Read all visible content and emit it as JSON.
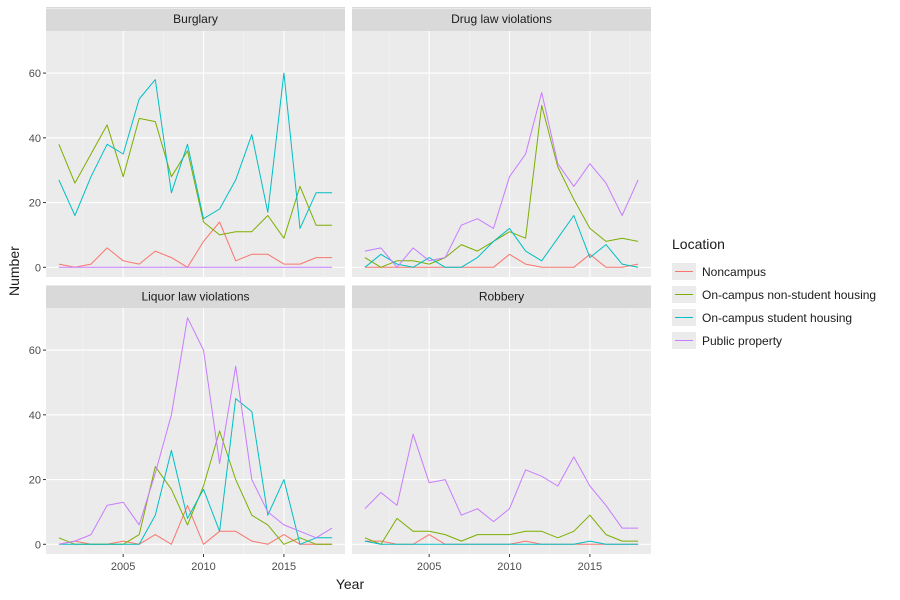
{
  "chart_data": {
    "type": "line",
    "xlabel": "Year",
    "ylabel": "Number",
    "xlim": [
      2000.2,
      2018.8
    ],
    "ylim": [
      -3,
      73
    ],
    "x_ticks": [
      2005,
      2010,
      2015
    ],
    "y_ticks": [
      0,
      20,
      40,
      60
    ],
    "legend_title": "Location",
    "legend_position": "right",
    "grid": true,
    "x": [
      2001,
      2002,
      2003,
      2004,
      2005,
      2006,
      2007,
      2008,
      2009,
      2010,
      2011,
      2012,
      2013,
      2014,
      2015,
      2016,
      2017,
      2018
    ],
    "series_names": [
      "Noncampus",
      "On-campus non-student housing",
      "On-campus student housing",
      "Public property"
    ],
    "colors": {
      "Noncampus": "#F8766D",
      "On-campus non-student housing": "#7CAE00",
      "On-campus student housing": "#00BFC4",
      "Public property": "#C77CFF"
    },
    "panels": [
      {
        "title": "Burglary",
        "series": [
          {
            "name": "Noncampus",
            "values": [
              1,
              0,
              1,
              6,
              2,
              1,
              5,
              3,
              0,
              8,
              14,
              2,
              4,
              4,
              1,
              1,
              3,
              3
            ]
          },
          {
            "name": "On-campus non-student housing",
            "values": [
              38,
              26,
              35,
              44,
              28,
              46,
              45,
              28,
              36,
              14,
              10,
              11,
              11,
              16,
              9,
              25,
              13,
              13
            ]
          },
          {
            "name": "On-campus student housing",
            "values": [
              27,
              16,
              28,
              38,
              35,
              52,
              58,
              23,
              38,
              15,
              18,
              27,
              41,
              17,
              60,
              12,
              23,
              23
            ]
          },
          {
            "name": "Public property",
            "values": [
              0,
              0,
              0,
              0,
              0,
              0,
              0,
              0,
              0,
              0,
              0,
              0,
              0,
              0,
              0,
              0,
              0,
              0
            ]
          }
        ]
      },
      {
        "title": "Drug law violations",
        "series": [
          {
            "name": "Noncampus",
            "values": [
              0,
              0,
              0,
              0,
              0,
              0,
              0,
              0,
              0,
              4,
              1,
              0,
              0,
              0,
              4,
              0,
              0,
              1
            ]
          },
          {
            "name": "On-campus non-student housing",
            "values": [
              3,
              0,
              2,
              2,
              1,
              3,
              7,
              5,
              8,
              11,
              9,
              50,
              31,
              21,
              12,
              8,
              9,
              8
            ]
          },
          {
            "name": "On-campus student housing",
            "values": [
              0,
              4,
              1,
              0,
              3,
              0,
              0,
              3,
              8,
              12,
              5,
              2,
              9,
              16,
              3,
              7,
              1,
              0
            ]
          },
          {
            "name": "Public property",
            "values": [
              5,
              6,
              0,
              6,
              2,
              3,
              13,
              15,
              12,
              28,
              35,
              54,
              32,
              25,
              32,
              26,
              16,
              27
            ]
          }
        ]
      },
      {
        "title": "Liquor law violations",
        "series": [
          {
            "name": "Noncampus",
            "values": [
              0,
              1,
              0,
              0,
              1,
              0,
              3,
              0,
              12,
              0,
              4,
              4,
              1,
              0,
              3,
              0,
              0,
              0
            ]
          },
          {
            "name": "On-campus non-student housing",
            "values": [
              2,
              0,
              0,
              0,
              0,
              3,
              24,
              17,
              6,
              18,
              35,
              20,
              9,
              6,
              0,
              2,
              0,
              0
            ]
          },
          {
            "name": "On-campus student housing",
            "values": [
              0,
              0,
              0,
              0,
              0,
              0,
              9,
              29,
              8,
              17,
              4,
              45,
              41,
              9,
              20,
              0,
              2,
              2
            ]
          },
          {
            "name": "Public property",
            "values": [
              0,
              1,
              3,
              12,
              13,
              6,
              22,
              40,
              70,
              60,
              25,
              55,
              20,
              10,
              6,
              4,
              2,
              5
            ]
          }
        ]
      },
      {
        "title": "Robbery",
        "series": [
          {
            "name": "Noncampus",
            "values": [
              1,
              1,
              0,
              0,
              3,
              0,
              0,
              0,
              0,
              0,
              1,
              0,
              0,
              0,
              0,
              0,
              0,
              0
            ]
          },
          {
            "name": "On-campus non-student housing",
            "values": [
              2,
              0,
              8,
              4,
              4,
              3,
              1,
              3,
              3,
              3,
              4,
              4,
              2,
              4,
              9,
              3,
              1,
              1
            ]
          },
          {
            "name": "On-campus student housing",
            "values": [
              1,
              0,
              0,
              0,
              0,
              0,
              0,
              0,
              0,
              0,
              0,
              0,
              0,
              0,
              1,
              0,
              0,
              0
            ]
          },
          {
            "name": "Public property",
            "values": [
              11,
              16,
              12,
              34,
              19,
              20,
              9,
              11,
              7,
              11,
              23,
              21,
              18,
              27,
              18,
              12,
              5,
              5
            ]
          }
        ]
      }
    ]
  }
}
